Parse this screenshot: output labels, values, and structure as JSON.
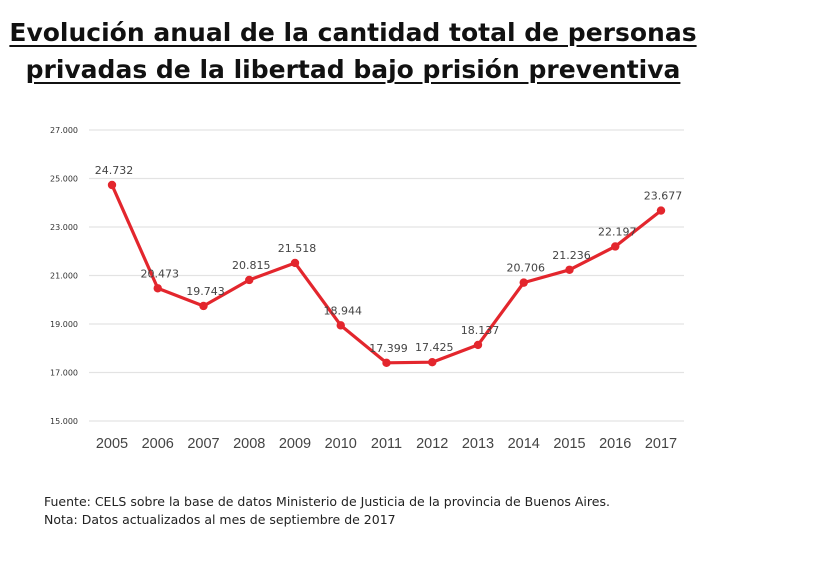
{
  "chart_data": {
    "type": "line",
    "title": [
      "Evolución anual de la cantidad total de personas",
      "privadas de la libertad bajo prisión preventiva"
    ],
    "categories": [
      "2005",
      "2006",
      "2007",
      "2008",
      "2009",
      "2010",
      "2011",
      "2012",
      "2013",
      "2014",
      "2015",
      "2016",
      "2017"
    ],
    "values": [
      24732,
      20473,
      19743,
      20815,
      21518,
      18944,
      17399,
      17425,
      18137,
      20706,
      21236,
      22197,
      23677
    ],
    "data_labels": [
      "24.732",
      "20.473",
      "19.743",
      "20.815",
      "21.518",
      "18.944",
      "17.399",
      "17.425",
      "18.137",
      "20.706",
      "21.236",
      "22.197",
      "23.677"
    ],
    "ylim": [
      15000,
      27000
    ],
    "yticks": [
      15000,
      17000,
      19000,
      21000,
      23000,
      25000,
      27000
    ],
    "ytick_labels": [
      "15.000",
      "17.000",
      "19.000",
      "21.000",
      "23.000",
      "25.000",
      "27.000"
    ],
    "grid": true,
    "line_color": "#e3262d",
    "xlabel": "",
    "ylabel": ""
  },
  "footer": {
    "source": "Fuente: CELS sobre la base de datos Ministerio de Justicia de la provincia de Buenos Aires.",
    "note": "Nota: Datos actualizados al mes de septiembre de 2017"
  }
}
